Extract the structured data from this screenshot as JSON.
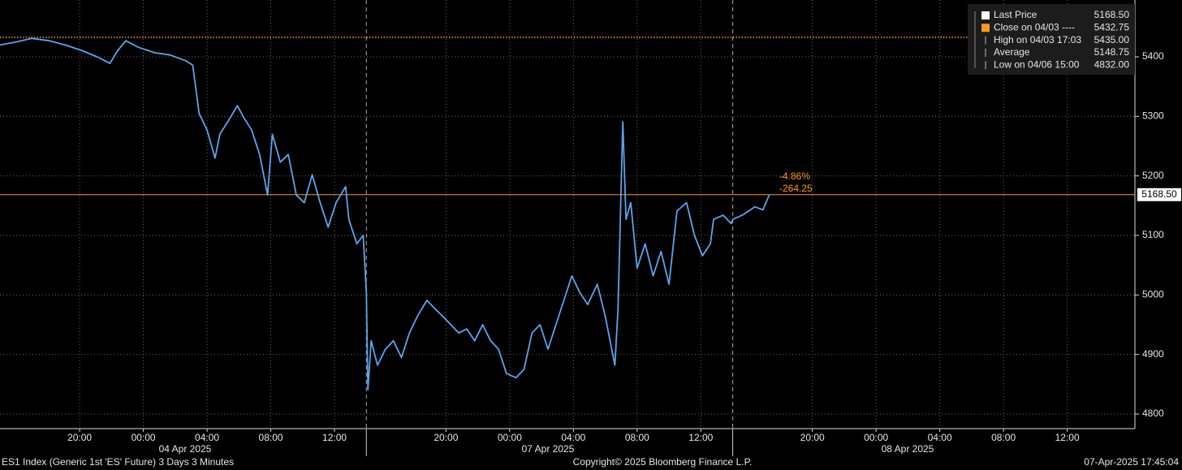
{
  "chart_data": {
    "type": "line",
    "x": [
      0,
      1.0,
      2.0,
      3.1,
      4.1,
      5.1,
      6.1,
      6.9,
      7.4,
      7.9,
      8.7,
      9.7,
      10.7,
      11.7,
      12.1,
      12.5,
      13.0,
      13.5,
      13.8,
      14.3,
      14.9,
      15.3,
      15.8,
      16.3,
      16.8,
      17.1,
      17.6,
      18.1,
      18.6,
      19.1,
      19.6,
      20.1,
      20.6,
      21.1,
      21.7,
      21.9,
      22.4,
      22.8,
      23.0,
      23.1,
      23.3,
      23.7,
      24.2,
      24.7,
      25.2,
      25.7,
      26.2,
      26.8,
      27.3,
      27.8,
      28.3,
      28.8,
      29.3,
      29.8,
      30.3,
      30.8,
      31.3,
      31.8,
      32.4,
      32.9,
      33.4,
      33.9,
      34.4,
      34.9,
      35.4,
      35.9,
      36.4,
      36.9,
      37.5,
      38.0,
      38.6,
      38.8,
      39.1,
      39.3,
      39.6,
      40.0,
      40.5,
      41.0,
      41.5,
      42.0,
      42.5,
      43.1,
      43.6,
      44.1,
      44.6,
      44.8,
      45.4,
      45.9,
      46.0,
      46.6,
      47.4,
      47.9,
      48.3
    ],
    "series": [
      {
        "name": "Last Price",
        "color": "#5aa4ee",
        "values": [
          5420,
          5425,
          5431,
          5427,
          5420,
          5411,
          5400,
          5389,
          5411,
          5427,
          5416,
          5407,
          5403,
          5393,
          5386,
          5305,
          5277,
          5230,
          5270,
          5291,
          5318,
          5298,
          5277,
          5236,
          5168,
          5270,
          5223,
          5236,
          5168,
          5155,
          5202,
          5155,
          5114,
          5155,
          5182,
          5127,
          5086,
          5100,
          5004,
          4841,
          4923,
          4882,
          4909,
          4923,
          4895,
          4936,
          4964,
          4991,
          4977,
          4964,
          4950,
          4936,
          4943,
          4923,
          4950,
          4923,
          4909,
          4868,
          4861,
          4875,
          4936,
          4950,
          4909,
          4950,
          4991,
          5032,
          5004,
          4984,
          5018,
          4964,
          4882,
          4977,
          5291,
          5127,
          5155,
          5045,
          5086,
          5032,
          5073,
          5018,
          5141,
          5155,
          5100,
          5066,
          5086,
          5127,
          5134,
          5120,
          5127,
          5134,
          5148,
          5143,
          5168.5
        ]
      }
    ],
    "xlim": [
      0,
      71.25
    ],
    "ylim": [
      4775.5,
      5495.5
    ],
    "xticks": [
      {
        "value": 5,
        "label": "20:00"
      },
      {
        "value": 9,
        "label": "00:00"
      },
      {
        "value": 13,
        "label": "04:00"
      },
      {
        "value": 17,
        "label": "08:00"
      },
      {
        "value": 21,
        "label": "12:00"
      },
      {
        "value": 28,
        "label": "20:00"
      },
      {
        "value": 32,
        "label": "00:00"
      },
      {
        "value": 36,
        "label": "04:00"
      },
      {
        "value": 40,
        "label": "08:00"
      },
      {
        "value": 44,
        "label": "12:00"
      },
      {
        "value": 51,
        "label": "20:00"
      },
      {
        "value": 55,
        "label": "00:00"
      },
      {
        "value": 59,
        "label": "04:00"
      },
      {
        "value": 63,
        "label": "08:00"
      },
      {
        "value": 67,
        "label": "12:00"
      }
    ],
    "yticks": [
      4800,
      4900,
      5000,
      5100,
      5200,
      5300,
      5400
    ],
    "date_labels": [
      "04 Apr 2025",
      "07 Apr 2025",
      "08 Apr 2025"
    ],
    "session_breaks": [
      23,
      46
    ],
    "grid": true,
    "reference_lines": [
      {
        "value": 5432.75,
        "color": "#ff9a1f",
        "style": "dotted"
      },
      {
        "value": 5168.5,
        "color": "#ff9a1f",
        "style": "solid"
      }
    ],
    "annotations": [
      "-4.86%",
      "-264.25"
    ],
    "legend": {
      "position": "upper right",
      "entries": [
        {
          "name": "Last Price",
          "label": "5168.50"
        },
        {
          "name": "Close on 04/03 ----",
          "label": "5432.75"
        },
        {
          "name": "High on 04/03 17:03",
          "label": "5435.00"
        },
        {
          "name": "Average",
          "label": "5148.75"
        },
        {
          "name": "Low on 04/06 15:00",
          "label": "4832.00"
        }
      ]
    }
  },
  "footer": {
    "left": "ES1 Index (Generic 1st 'ES' Future) 3 Days 3 Minutes",
    "center": "Copyright© 2025 Bloomberg Finance L.P.",
    "right": "07-Apr-2025 17:45:04"
  }
}
